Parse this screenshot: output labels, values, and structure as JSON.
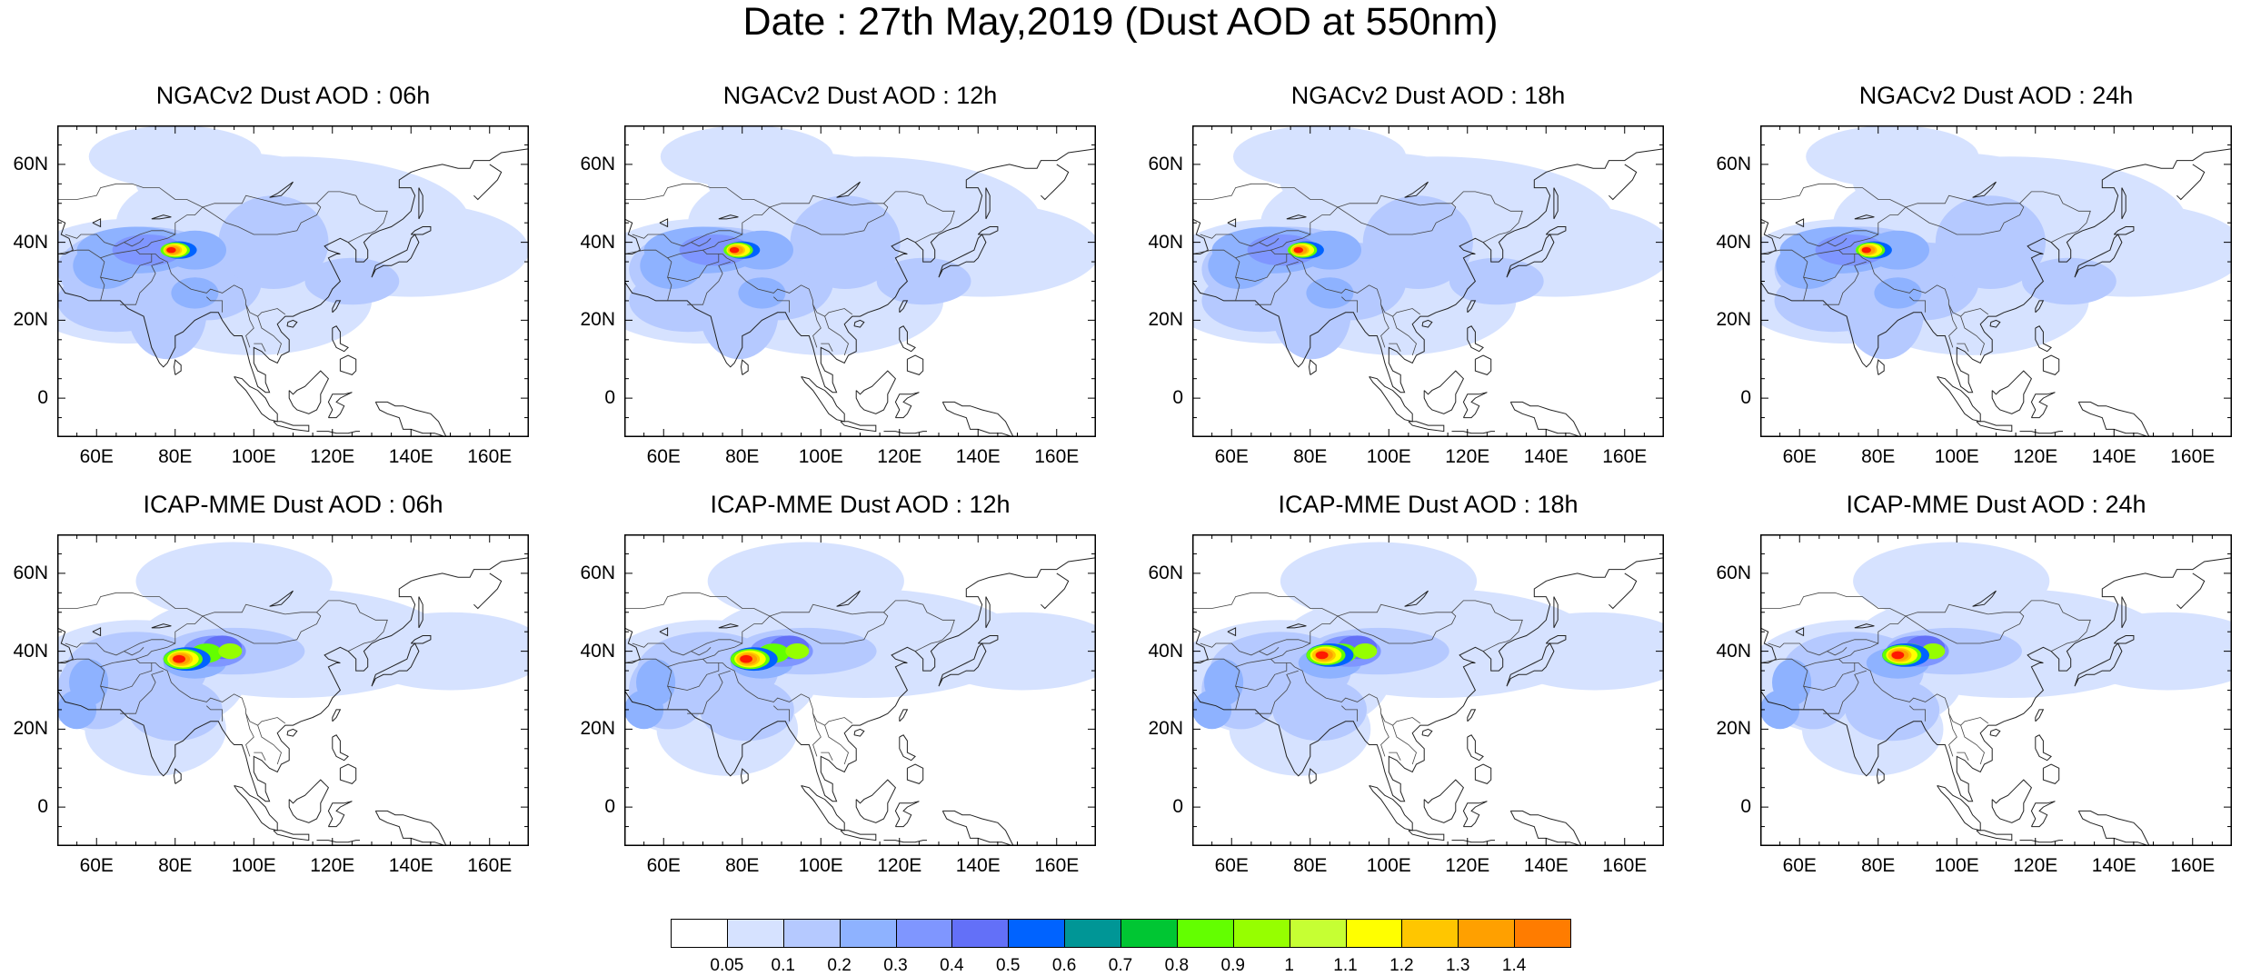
{
  "title": "Date : 27th May,2019 (Dust AOD at 550nm)",
  "x_ticks": [
    "60E",
    "80E",
    "100E",
    "120E",
    "140E",
    "160E"
  ],
  "y_ticks": [
    "60N",
    "40N",
    "20N",
    "0"
  ],
  "panels": [
    {
      "title": "NGACv2 Dust AOD : 06h",
      "model": "NGACv2",
      "hour": "06h"
    },
    {
      "title": "NGACv2 Dust AOD : 12h",
      "model": "NGACv2",
      "hour": "12h"
    },
    {
      "title": "NGACv2 Dust AOD : 18h",
      "model": "NGACv2",
      "hour": "18h"
    },
    {
      "title": "NGACv2 Dust AOD : 24h",
      "model": "NGACv2",
      "hour": "24h"
    },
    {
      "title": "ICAP-MME Dust AOD : 06h",
      "model": "ICAP-MME",
      "hour": "06h"
    },
    {
      "title": "ICAP-MME Dust AOD : 12h",
      "model": "ICAP-MME",
      "hour": "12h"
    },
    {
      "title": "ICAP-MME Dust AOD : 18h",
      "model": "ICAP-MME",
      "hour": "18h"
    },
    {
      "title": "ICAP-MME Dust AOD : 24h",
      "model": "ICAP-MME",
      "hour": "24h"
    }
  ],
  "colorbar": {
    "labels": [
      "0.05",
      "0.1",
      "0.2",
      "0.3",
      "0.4",
      "0.5",
      "0.6",
      "0.7",
      "0.8",
      "0.9",
      "1",
      "1.1",
      "1.2",
      "1.3",
      "1.4"
    ],
    "colors": [
      "#ffffff",
      "#d6e2ff",
      "#b5c9ff",
      "#8eb2ff",
      "#7f96ff",
      "#6370f8",
      "#0063ff",
      "#009696",
      "#00c633",
      "#63ff00",
      "#96ff00",
      "#c6ff33",
      "#ffff00",
      "#ffc600",
      "#ffa000",
      "#ff7c00",
      "#ff1900"
    ]
  },
  "chart_data": {
    "type": "heatmap",
    "title": "Date : 27th May,2019 (Dust AOD at 550nm)",
    "variable": "Dust AOD at 550nm",
    "date": "27th May,2019",
    "xlim": [
      50,
      170
    ],
    "ylim": [
      -10,
      70
    ],
    "x_tick_values": [
      60,
      80,
      100,
      120,
      140,
      160
    ],
    "y_tick_values": [
      60,
      40,
      20,
      0
    ],
    "levels": [
      0.05,
      0.1,
      0.2,
      0.3,
      0.4,
      0.5,
      0.6,
      0.7,
      0.8,
      0.9,
      1,
      1.1,
      1.2,
      1.3,
      1.4
    ],
    "panels": [
      {
        "model": "NGACv2",
        "hour": "06h",
        "max_center_lon": 80,
        "max_center_lat": 38,
        "max_aod": 1.4
      },
      {
        "model": "NGACv2",
        "hour": "12h",
        "max_center_lon": 79,
        "max_center_lat": 38,
        "max_aod": 1.3
      },
      {
        "model": "NGACv2",
        "hour": "18h",
        "max_center_lon": 78,
        "max_center_lat": 38,
        "max_aod": 1.3
      },
      {
        "model": "NGACv2",
        "hour": "24h",
        "max_center_lon": 78,
        "max_center_lat": 38,
        "max_aod": 1.3
      },
      {
        "model": "ICAP-MME",
        "hour": "06h",
        "max_center_lon": 82,
        "max_center_lat": 38,
        "max_aod": 1.4
      },
      {
        "model": "ICAP-MME",
        "hour": "12h",
        "max_center_lon": 82,
        "max_center_lat": 38,
        "max_aod": 1.4
      },
      {
        "model": "ICAP-MME",
        "hour": "18h",
        "max_center_lon": 84,
        "max_center_lat": 39,
        "max_aod": 1.4
      },
      {
        "model": "ICAP-MME",
        "hour": "24h",
        "max_center_lon": 86,
        "max_center_lat": 39,
        "max_aod": 1.4
      }
    ]
  }
}
